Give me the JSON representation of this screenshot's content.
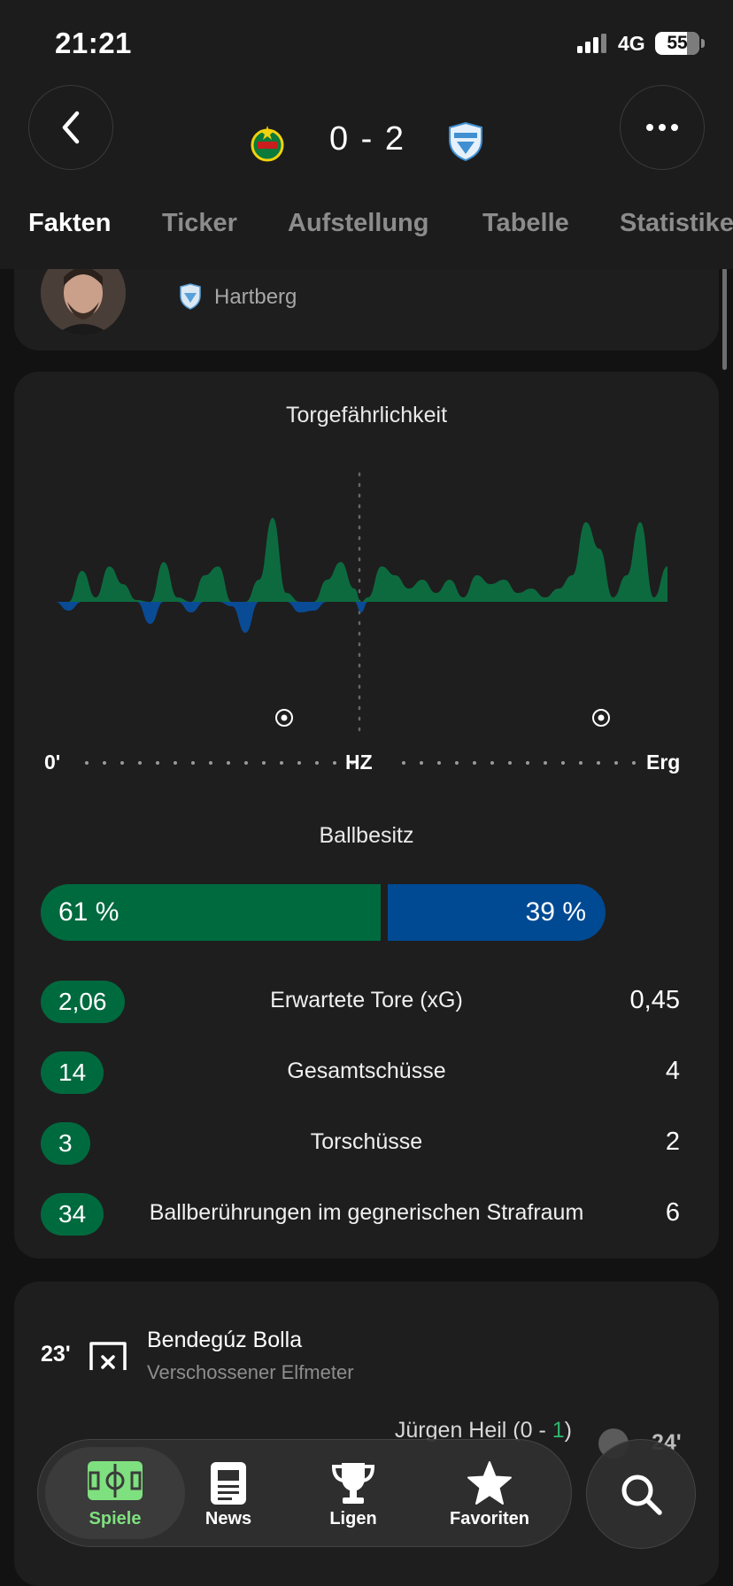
{
  "status_bar": {
    "time": "21:21",
    "network": "4G",
    "battery": "55"
  },
  "header": {
    "score": "0 - 2",
    "tabs": [
      {
        "label": "Fakten"
      },
      {
        "label": "Ticker"
      },
      {
        "label": "Aufstellung"
      },
      {
        "label": "Tabelle"
      },
      {
        "label": "Statistiken"
      }
    ]
  },
  "player_card": {
    "club": "Hartberg"
  },
  "threat_chart": {
    "title": "Torgefährlichkeit",
    "start_label": "0'",
    "half_label": "HZ",
    "end_label": "Erg",
    "colors": {
      "home": "#0d6a3f",
      "away": "#0a4b95"
    }
  },
  "chart_data": {
    "type": "area",
    "x": [
      0,
      2,
      4,
      6,
      8,
      10,
      12,
      14,
      16,
      18,
      20,
      22,
      24,
      26,
      28,
      30,
      32,
      34,
      36,
      38,
      40,
      42,
      44,
      45,
      46,
      48,
      50,
      52,
      54,
      56,
      58,
      60,
      62,
      64,
      66,
      68,
      70,
      72,
      74,
      76,
      78,
      80,
      82,
      84,
      86,
      88,
      90
    ],
    "values": [
      0,
      -10,
      35,
      5,
      40,
      20,
      2,
      -25,
      45,
      5,
      -12,
      30,
      40,
      -5,
      -35,
      25,
      95,
      10,
      -12,
      -10,
      25,
      45,
      15,
      -12,
      5,
      40,
      30,
      15,
      25,
      10,
      25,
      5,
      30,
      20,
      25,
      10,
      15,
      5,
      15,
      30,
      90,
      60,
      5,
      30,
      90,
      5,
      40
    ],
    "xlim": [
      0,
      90
    ],
    "ylim": [
      -40,
      100
    ]
  },
  "possession": {
    "title": "Ballbesitz",
    "home": "61 %",
    "away": "39 %",
    "home_share": 61
  },
  "stats": [
    {
      "home": "2,06",
      "label": "Erwartete Tore (xG)",
      "away": "0,45"
    },
    {
      "home": "14",
      "label": "Gesamtschüsse",
      "away": "4"
    },
    {
      "home": "3",
      "label": "Torschüsse",
      "away": "2"
    },
    {
      "home": "34",
      "label": "Ballberührungen im gegnerischen Strafraum",
      "away": "6"
    }
  ],
  "events": [
    {
      "minute": "23'",
      "player": "Bendegúz Bolla",
      "description": "Verschossener Elfmeter"
    },
    {
      "minute": "24'",
      "player_prefix": "Jürgen Heil (0 - ",
      "player_score": "1",
      "player_suffix": ")"
    }
  ],
  "bottom_nav": {
    "items": [
      {
        "label": "Spiele",
        "icon": "pitch-icon"
      },
      {
        "label": "News",
        "icon": "newspaper-icon"
      },
      {
        "label": "Ligen",
        "icon": "trophy-icon"
      },
      {
        "label": "Favoriten",
        "icon": "star-icon"
      }
    ],
    "active_color": "#7fe07f"
  }
}
